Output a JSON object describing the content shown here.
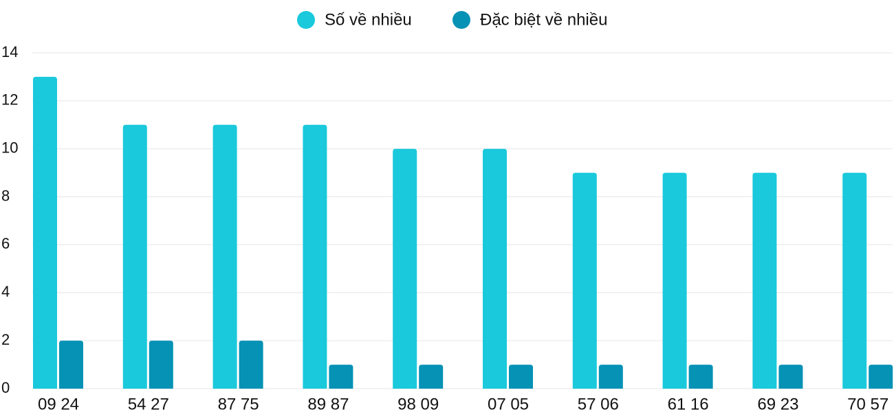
{
  "chart_data": {
    "type": "bar",
    "categories": [
      "09 24",
      "54 27",
      "87 75",
      "89 87",
      "98 09",
      "07 05",
      "57 06",
      "61 16",
      "69 23",
      "70 57"
    ],
    "series": [
      {
        "name": "Số về nhiều",
        "color": "#1ac9db",
        "values": [
          13,
          11,
          11,
          11,
          10,
          10,
          9,
          9,
          9,
          9
        ]
      },
      {
        "name": "Đặc biệt về nhiều",
        "color": "#0592b5",
        "values": [
          2,
          2,
          2,
          1,
          1,
          1,
          1,
          1,
          1,
          1
        ]
      }
    ],
    "ylim": [
      0,
      14
    ],
    "yticks": [
      0,
      2,
      4,
      6,
      8,
      10,
      12,
      14
    ],
    "grid": true,
    "legend": "top"
  }
}
